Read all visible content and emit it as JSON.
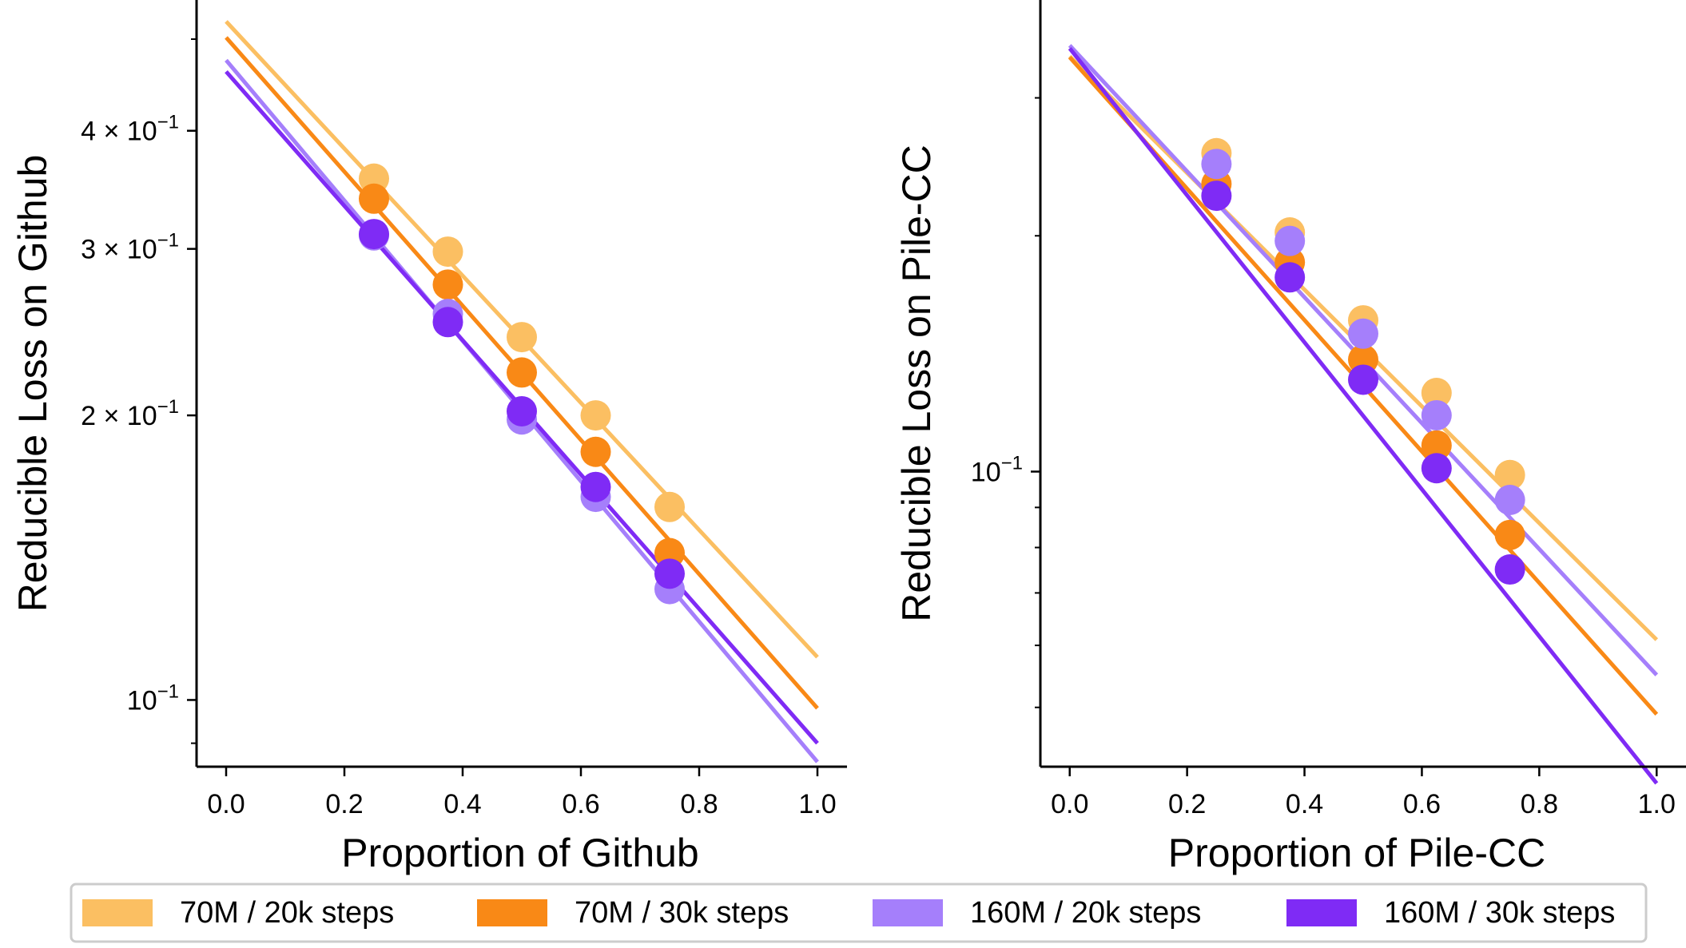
{
  "chart_data": [
    {
      "type": "scatter",
      "xlabel": "Proportion of Github",
      "ylabel": "Reducible Loss on Github",
      "yscale": "log",
      "xlim": [
        -0.05,
        1.05
      ],
      "ylim": [
        0.085,
        0.55
      ],
      "xticks": [
        "0.0",
        "0.2",
        "0.4",
        "0.6",
        "0.8",
        "1.0"
      ],
      "yticks": [
        {
          "value": 0.1,
          "base": "10",
          "exp": "−1",
          "coef": ""
        },
        {
          "value": 0.2,
          "base": "10",
          "exp": "−1",
          "coef": "2 × "
        },
        {
          "value": 0.3,
          "base": "10",
          "exp": "−1",
          "coef": "3 × "
        },
        {
          "value": 0.4,
          "base": "10",
          "exp": "−1",
          "coef": "4 × "
        }
      ],
      "minor_yticks": [
        0.09,
        0.5
      ],
      "series": [
        {
          "name": "70M / 20k steps",
          "x": [
            0.25,
            0.375,
            0.5,
            0.625,
            0.75
          ],
          "values": [
            0.356,
            0.298,
            0.242,
            0.2,
            0.16
          ],
          "fit": {
            "y0": 0.522,
            "y1": 0.111
          }
        },
        {
          "name": "70M / 30k steps",
          "x": [
            0.25,
            0.375,
            0.5,
            0.625,
            0.75
          ],
          "values": [
            0.339,
            0.275,
            0.222,
            0.183,
            0.143
          ],
          "fit": {
            "y0": 0.502,
            "y1": 0.098
          }
        },
        {
          "name": "160M / 20k steps",
          "x": [
            0.25,
            0.375,
            0.5,
            0.625,
            0.75
          ],
          "values": [
            0.31,
            0.256,
            0.198,
            0.164,
            0.131
          ],
          "fit": {
            "y0": 0.475,
            "y1": 0.086
          }
        },
        {
          "name": "160M / 30k steps",
          "x": [
            0.25,
            0.375,
            0.5,
            0.625,
            0.75
          ],
          "values": [
            0.311,
            0.251,
            0.202,
            0.168,
            0.136
          ],
          "fit": {
            "y0": 0.462,
            "y1": 0.09
          }
        }
      ]
    },
    {
      "type": "scatter",
      "xlabel": "Proportion of Pile-CC",
      "ylabel": "Reducible Loss on Pile-CC",
      "yscale": "log",
      "xlim": [
        -0.05,
        1.05
      ],
      "ylim": [
        0.042,
        0.4
      ],
      "xticks": [
        "0.0",
        "0.2",
        "0.4",
        "0.6",
        "0.8",
        "1.0"
      ],
      "yticks": [
        {
          "value": 0.1,
          "base": "10",
          "exp": "−1",
          "coef": ""
        }
      ],
      "minor_yticks": [
        0.05,
        0.06,
        0.07,
        0.08,
        0.09,
        0.2,
        0.3
      ],
      "series": [
        {
          "name": "70M / 20k steps",
          "x": [
            0.25,
            0.375,
            0.5,
            0.625,
            0.75
          ],
          "values": [
            0.255,
            0.202,
            0.156,
            0.126,
            0.099
          ],
          "fit": {
            "y0": 0.339,
            "y1": 0.061
          }
        },
        {
          "name": "70M / 30k steps",
          "x": [
            0.25,
            0.375,
            0.5,
            0.625,
            0.75
          ],
          "values": [
            0.233,
            0.185,
            0.139,
            0.108,
            0.083
          ],
          "fit": {
            "y0": 0.338,
            "y1": 0.049
          }
        },
        {
          "name": "160M / 20k steps",
          "x": [
            0.25,
            0.375,
            0.5,
            0.625,
            0.75
          ],
          "values": [
            0.247,
            0.197,
            0.15,
            0.118,
            0.092
          ],
          "fit": {
            "y0": 0.35,
            "y1": 0.055
          }
        },
        {
          "name": "160M / 30k steps",
          "x": [
            0.25,
            0.375,
            0.5,
            0.625,
            0.75
          ],
          "values": [
            0.225,
            0.177,
            0.131,
            0.101,
            0.075
          ],
          "fit": {
            "y0": 0.347,
            "y1": 0.04
          }
        }
      ]
    }
  ],
  "legend": {
    "placement": "bottom",
    "entries": [
      "70M / 20k steps",
      "70M / 30k steps",
      "160M / 20k steps",
      "160M / 30k steps"
    ]
  },
  "colors": {
    "70M / 20k steps": "#fbbf62",
    "70M / 30k steps": "#f98916",
    "160M / 20k steps": "#a57ffb",
    "160M / 30k steps": "#7f2bf5",
    "legend_border": "#cccccc"
  }
}
